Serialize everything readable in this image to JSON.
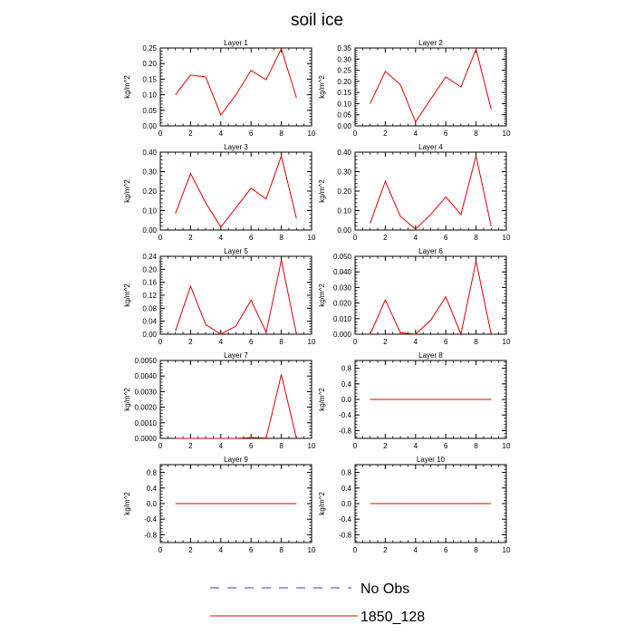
{
  "figure": {
    "title": "soil ice",
    "legend": [
      {
        "label": "No Obs",
        "style": "dashed",
        "color": "#4040a0"
      },
      {
        "label": "1850_128",
        "style": "solid",
        "color": "#e00000"
      }
    ]
  },
  "chart_data": [
    {
      "type": "line",
      "title": "Layer 1",
      "ylabel": "kg/m^2",
      "xlim": [
        0,
        10
      ],
      "xticks": [
        "0",
        "2",
        "4",
        "6",
        "8",
        "10"
      ],
      "ylim": [
        0,
        0.25
      ],
      "yticks": [
        "0.00",
        "0.05",
        "0.10",
        "0.15",
        "0.20",
        "0.25"
      ],
      "series": [
        {
          "name": "1850_128",
          "color": "#e00000",
          "x": [
            1,
            2,
            3,
            4,
            5,
            6,
            7,
            8,
            9
          ],
          "y": [
            0.1,
            0.163,
            0.157,
            0.035,
            0.1,
            0.178,
            0.148,
            0.248,
            0.09
          ]
        }
      ]
    },
    {
      "type": "line",
      "title": "Layer 2",
      "ylabel": "kg/m^2",
      "xlim": [
        0,
        10
      ],
      "xticks": [
        "0",
        "2",
        "4",
        "6",
        "8",
        "10"
      ],
      "ylim": [
        0,
        0.35
      ],
      "yticks": [
        "0.00",
        "0.05",
        "0.10",
        "0.15",
        "0.20",
        "0.25",
        "0.30",
        "0.35"
      ],
      "series": [
        {
          "name": "1850_128",
          "color": "#e00000",
          "x": [
            1,
            2,
            3,
            4,
            5,
            6,
            7,
            8,
            9
          ],
          "y": [
            0.1,
            0.245,
            0.185,
            0.018,
            0.12,
            0.22,
            0.175,
            0.345,
            0.075
          ]
        }
      ]
    },
    {
      "type": "line",
      "title": "Layer 3",
      "ylabel": "kg/m^2",
      "xlim": [
        0,
        10
      ],
      "xticks": [
        "0",
        "2",
        "4",
        "6",
        "8",
        "10"
      ],
      "ylim": [
        0,
        0.4
      ],
      "yticks": [
        "0.00",
        "0.10",
        "0.20",
        "0.30",
        "0.40"
      ],
      "series": [
        {
          "name": "1850_128",
          "color": "#e00000",
          "x": [
            1,
            2,
            3,
            4,
            5,
            6,
            7,
            8,
            9
          ],
          "y": [
            0.085,
            0.29,
            0.14,
            0.015,
            0.115,
            0.215,
            0.16,
            0.38,
            0.06
          ]
        }
      ]
    },
    {
      "type": "line",
      "title": "Layer 4",
      "ylabel": "kg/m^2",
      "xlim": [
        0,
        10
      ],
      "xticks": [
        "0",
        "2",
        "4",
        "6",
        "8",
        "10"
      ],
      "ylim": [
        0,
        0.4
      ],
      "yticks": [
        "0.00",
        "0.10",
        "0.20",
        "0.30",
        "0.40"
      ],
      "series": [
        {
          "name": "1850_128",
          "color": "#e00000",
          "x": [
            1,
            2,
            3,
            4,
            5,
            6,
            7,
            8,
            9
          ],
          "y": [
            0.035,
            0.25,
            0.07,
            0.005,
            0.08,
            0.17,
            0.08,
            0.38,
            0.02
          ]
        }
      ]
    },
    {
      "type": "line",
      "title": "Layer 5",
      "ylabel": "kg/m^2",
      "xlim": [
        0,
        10
      ],
      "xticks": [
        "0",
        "2",
        "4",
        "6",
        "8",
        "10"
      ],
      "ylim": [
        0,
        0.24
      ],
      "yticks": [
        "0.00",
        "0.04",
        "0.08",
        "0.12",
        "0.16",
        "0.20",
        "0.24"
      ],
      "series": [
        {
          "name": "1850_128",
          "color": "#e00000",
          "x": [
            1,
            2,
            3,
            4,
            5,
            6,
            7,
            8,
            9
          ],
          "y": [
            0.01,
            0.148,
            0.03,
            0.0,
            0.025,
            0.105,
            0.005,
            0.228,
            0.0
          ]
        }
      ]
    },
    {
      "type": "line",
      "title": "Layer 6",
      "ylabel": "kg/m^2",
      "xlim": [
        0,
        10
      ],
      "xticks": [
        "0",
        "2",
        "4",
        "6",
        "8",
        "10"
      ],
      "ylim": [
        0,
        0.05
      ],
      "yticks": [
        "0.000",
        "0.010",
        "0.020",
        "0.030",
        "0.040",
        "0.050"
      ],
      "series": [
        {
          "name": "1850_128",
          "color": "#e00000",
          "x": [
            1,
            2,
            3,
            4,
            5,
            6,
            7,
            8,
            9
          ],
          "y": [
            0.0,
            0.022,
            0.001,
            0.0,
            0.009,
            0.024,
            0.0,
            0.047,
            0.0
          ]
        }
      ]
    },
    {
      "type": "line",
      "title": "Layer 7",
      "ylabel": "kg/m^2",
      "xlim": [
        0,
        10
      ],
      "xticks": [
        "0",
        "2",
        "4",
        "6",
        "8",
        "10"
      ],
      "ylim": [
        0,
        0.005
      ],
      "yticks": [
        "0.0000",
        "0.0010",
        "0.0020",
        "0.0030",
        "0.0040",
        "0.0050"
      ],
      "series": [
        {
          "name": "1850_128",
          "color": "#e00000",
          "x": [
            1,
            2,
            3,
            4,
            5,
            6,
            7,
            8,
            9
          ],
          "y": [
            0.0,
            0.0,
            0.0,
            0.0,
            0.0,
            5e-05,
            2e-05,
            0.0041,
            0.0
          ]
        }
      ]
    },
    {
      "type": "line",
      "title": "Layer 8",
      "ylabel": "kg/m^2",
      "xlim": [
        0,
        10
      ],
      "xticks": [
        "0",
        "2",
        "4",
        "6",
        "8",
        "10"
      ],
      "ylim": [
        -1.0,
        1.0
      ],
      "yticks": [
        "-0.8",
        "-0.4",
        "0.0",
        "0.4",
        "0.8"
      ],
      "series": [
        {
          "name": "1850_128",
          "color": "#e00000",
          "x": [
            1,
            2,
            3,
            4,
            5,
            6,
            7,
            8,
            9
          ],
          "y": [
            0,
            0,
            0,
            0,
            0,
            0,
            0,
            0,
            0
          ]
        }
      ]
    },
    {
      "type": "line",
      "title": "Layer 9",
      "ylabel": "kg/m^2",
      "xlim": [
        0,
        10
      ],
      "xticks": [
        "0",
        "2",
        "4",
        "6",
        "8",
        "10"
      ],
      "ylim": [
        -1.0,
        1.0
      ],
      "yticks": [
        "-0.8",
        "-0.4",
        "0.0",
        "0.4",
        "0.8"
      ],
      "series": [
        {
          "name": "1850_128",
          "color": "#e00000",
          "x": [
            1,
            2,
            3,
            4,
            5,
            6,
            7,
            8,
            9
          ],
          "y": [
            0,
            0,
            0,
            0,
            0,
            0,
            0,
            0,
            0
          ]
        }
      ]
    },
    {
      "type": "line",
      "title": "Layer 10",
      "ylabel": "kg/m^2",
      "xlim": [
        0,
        10
      ],
      "xticks": [
        "0",
        "2",
        "4",
        "6",
        "8",
        "10"
      ],
      "ylim": [
        -1.0,
        1.0
      ],
      "yticks": [
        "-0.8",
        "-0.4",
        "0.0",
        "0.4",
        "0.8"
      ],
      "series": [
        {
          "name": "1850_128",
          "color": "#e00000",
          "x": [
            1,
            2,
            3,
            4,
            5,
            6,
            7,
            8,
            9
          ],
          "y": [
            0,
            0,
            0,
            0,
            0,
            0,
            0,
            0,
            0
          ]
        }
      ]
    }
  ]
}
